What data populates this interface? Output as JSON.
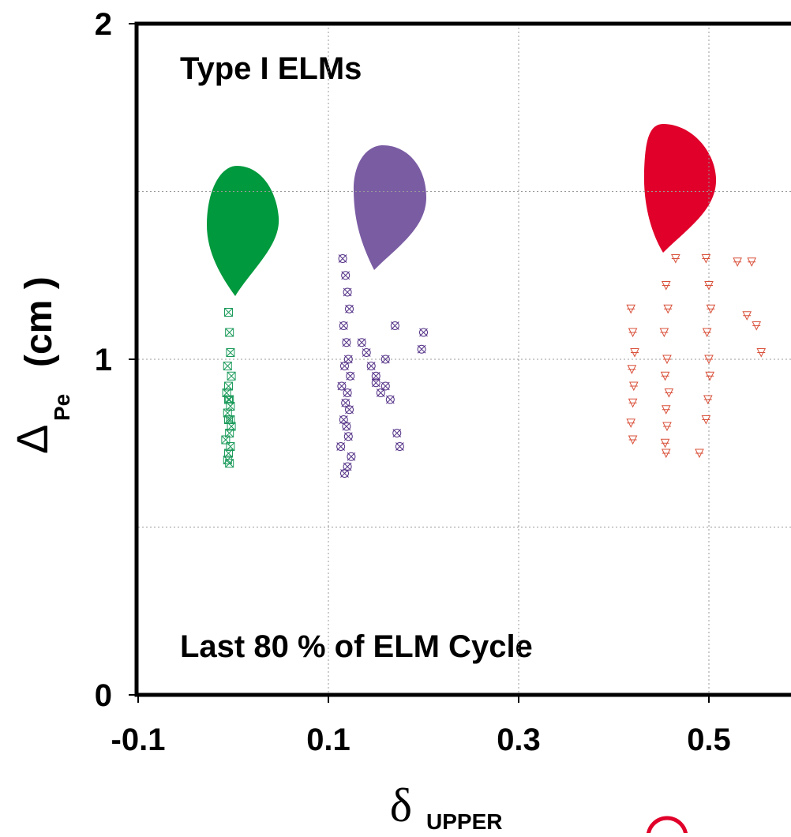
{
  "chart_data": {
    "type": "scatter",
    "annotations": [
      "Type I ELMs",
      "Last 80 % of ELM Cycle"
    ],
    "xlabel": {
      "symbol": "δ",
      "subscript": "UPPER"
    },
    "ylabel": {
      "symbol": "Δ",
      "subscript": "Pe",
      "unit": "(cm )"
    },
    "xlim": [
      -0.1,
      0.585
    ],
    "ylim": [
      0,
      2
    ],
    "xticks": [
      -0.1,
      0.1,
      0.3,
      0.5
    ],
    "yticks": [
      0,
      1,
      2
    ],
    "xgrid": [
      0.1,
      0.3,
      0.5
    ],
    "ygrid": [
      0.5,
      1,
      1.5
    ],
    "series": [
      {
        "color": "#1a9a5a",
        "marker": "boxx",
        "x": [
          -0.005,
          -0.004,
          -0.003,
          -0.006,
          -0.002,
          -0.005,
          -0.007,
          -0.004,
          -0.003,
          -0.006,
          -0.005,
          -0.002,
          -0.004,
          -0.008,
          -0.003,
          -0.005,
          -0.006,
          -0.004,
          -0.003,
          -0.005
        ],
        "values": [
          1.14,
          1.08,
          1.02,
          0.98,
          0.95,
          0.92,
          0.9,
          0.88,
          0.86,
          0.84,
          0.82,
          0.8,
          0.78,
          0.76,
          0.74,
          0.72,
          0.7,
          0.69,
          0.82,
          0.88
        ]
      },
      {
        "color": "#553388",
        "marker": "x",
        "x": [
          0.115,
          0.118,
          0.12,
          0.122,
          0.116,
          0.119,
          0.121,
          0.117,
          0.123,
          0.114,
          0.12,
          0.118,
          0.122,
          0.116,
          0.119,
          0.121,
          0.113,
          0.124,
          0.12,
          0.117,
          0.135,
          0.14,
          0.145,
          0.15,
          0.155,
          0.16,
          0.165,
          0.172,
          0.175,
          0.2,
          0.198,
          0.17,
          0.16,
          0.15
        ],
        "values": [
          1.3,
          1.25,
          1.2,
          1.15,
          1.1,
          1.05,
          1.0,
          0.98,
          0.95,
          0.92,
          0.9,
          0.87,
          0.85,
          0.82,
          0.8,
          0.77,
          0.74,
          0.71,
          0.68,
          0.66,
          1.05,
          1.02,
          0.98,
          0.95,
          0.9,
          0.92,
          0.88,
          0.78,
          0.74,
          1.08,
          1.03,
          1.1,
          1.0,
          0.93
        ]
      },
      {
        "color": "#d9503a",
        "marker": "triangle",
        "x": [
          0.418,
          0.42,
          0.422,
          0.419,
          0.421,
          0.42,
          0.418,
          0.42,
          0.455,
          0.457,
          0.453,
          0.456,
          0.454,
          0.458,
          0.455,
          0.456,
          0.454,
          0.455,
          0.497,
          0.5,
          0.502,
          0.498,
          0.5,
          0.501,
          0.499,
          0.497,
          0.53,
          0.545,
          0.55,
          0.54,
          0.555,
          0.49,
          0.465
        ],
        "values": [
          1.15,
          1.08,
          1.02,
          0.97,
          0.92,
          0.87,
          0.81,
          0.76,
          1.22,
          1.15,
          1.08,
          1.0,
          0.95,
          0.9,
          0.85,
          0.8,
          0.75,
          0.72,
          1.3,
          1.22,
          1.15,
          1.08,
          1.0,
          0.95,
          0.88,
          0.82,
          1.29,
          1.29,
          1.1,
          1.13,
          1.02,
          0.72,
          1.3
        ]
      }
    ]
  }
}
